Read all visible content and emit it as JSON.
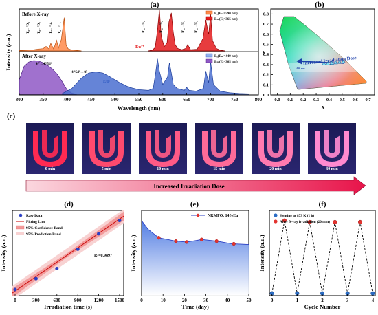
{
  "panels": {
    "a": {
      "label": "(a)",
      "before_title": "Before X-ray",
      "after_title": "After X-ray",
      "ion_eu3": "Eu³⁺",
      "ion_eu2": "Eu²⁺",
      "legend_before": [
        "Eₓ(Eₘ=590 nm)",
        "Eₘ(Eₓ=365 nm)"
      ],
      "legend_after": [
        "Eₓ(Eₘ=449 nm)",
        "Eₘ(Eₓ=365 nm)"
      ],
      "exc_peaks": [
        "⁷F₀→⁵D₄",
        "⁷F₀→⁵D₂",
        "⁷F₀→⁵G₂",
        "⁷F₀→⁵L₆"
      ],
      "em_peaks": [
        "⁵D₀→⁷F₁",
        "⁵D₀→⁷F₂",
        "⁵D₀→⁷F₃",
        "⁵D₀→⁷F₄"
      ],
      "eu2_exc_label": "4f⁷→4f⁶5d¹",
      "eu2_em_label": "4f⁶5d¹→4f⁷",
      "xlabel": "Wavelength (nm)",
      "ylabel": "Intensity (a.u.)",
      "xticks": [
        "300",
        "350",
        "400",
        "450",
        "500",
        "550",
        "600",
        "650",
        "700",
        "750",
        "800"
      ]
    },
    "b": {
      "label": "(b)",
      "annotation": "Increased Irradiation Dose",
      "start_label": "400 nm",
      "xlabel": "x",
      "ylabel": "y",
      "xticks": [
        "0.0",
        "0.1",
        "0.2",
        "0.3",
        "0.4",
        "0.5",
        "0.6",
        "0.7"
      ],
      "yticks": [
        "0.0",
        "0.1",
        "0.2",
        "0.3",
        "0.4",
        "0.5",
        "0.6",
        "0.7",
        "0.8"
      ]
    },
    "c": {
      "label": "(c)",
      "times": [
        "0 min",
        "5 min",
        "10 min",
        "15 min",
        "20 min",
        "30 min"
      ],
      "arrow_text": "Increased Irradiation Dose"
    },
    "d": {
      "label": "(d)",
      "legend": [
        "Raw Data",
        "Fitting Line",
        "95% Confidence Band",
        "95% Prediction Band"
      ],
      "r2": "R²=0.9897",
      "xlabel": "Irradiation time (s)",
      "ylabel": "Intensity (a.u.)",
      "xticks": [
        "0",
        "300",
        "600",
        "900",
        "1200",
        "1500"
      ]
    },
    "e": {
      "label": "(e)",
      "legend": "NKMPO: 14%Eu",
      "xlabel": "Time (day)",
      "ylabel": "Intensity (a.u.)",
      "xticks": [
        "0",
        "10",
        "20",
        "30",
        "40",
        "50"
      ]
    },
    "f": {
      "label": "(f)",
      "legend": [
        "Heating at 873 K (1 h)",
        "After X-ray irradiation (20 min)"
      ],
      "xlabel": "Cycle Number",
      "ylabel": "Intensity (a.u.)",
      "xticks": [
        "0",
        "1",
        "2",
        "3",
        "4"
      ]
    }
  },
  "colors": {
    "exc_before": "#ff8a4a",
    "em_before": "#e31a1c",
    "exc_after": "#8f58c6",
    "em_after": "#4a6fd0",
    "red_point": "#e3342f",
    "blue_point": "#2b6cc4",
    "fit_line": "#cc1010"
  },
  "chart_data": [
    {
      "panel": "a",
      "type": "line",
      "xlim": [
        300,
        800
      ],
      "series": [
        {
          "name": "Eₓ(Eₘ=590 nm)",
          "x": [
            300,
            315,
            330,
            340,
            350,
            356,
            362,
            366,
            372,
            378,
            382,
            388,
            394,
            398,
            402,
            408,
            416,
            430
          ],
          "y": [
            0.01,
            0.02,
            0.03,
            0.05,
            0.06,
            0.12,
            0.05,
            0.2,
            0.05,
            0.28,
            0.08,
            0.3,
            0.88,
            0.15,
            0.06,
            0.03,
            0.02,
            0.0
          ]
        },
        {
          "name": "Eₘ(Eₓ=365 nm)",
          "x": [
            570,
            578,
            584,
            589,
            593,
            597,
            603,
            609,
            613,
            618,
            622,
            626,
            631,
            640,
            648,
            652,
            658,
            672,
            684,
            690,
            696,
            700,
            704,
            712,
            720,
            730
          ],
          "y": [
            0.0,
            0.02,
            0.08,
            0.5,
            1.0,
            0.35,
            0.1,
            0.2,
            0.7,
            0.92,
            0.45,
            0.15,
            0.06,
            0.03,
            0.06,
            0.15,
            0.03,
            0.04,
            0.3,
            0.75,
            0.4,
            0.9,
            0.25,
            0.06,
            0.02,
            0.0
          ]
        },
        {
          "name": "Eₓ(Eₘ=449 nm)",
          "x": [
            300,
            310,
            320,
            330,
            340,
            350,
            360,
            370,
            380,
            390,
            400,
            410,
            420
          ],
          "y": [
            0.4,
            0.78,
            0.9,
            0.94,
            0.93,
            0.88,
            0.8,
            0.7,
            0.55,
            0.35,
            0.12,
            0.03,
            0.0
          ]
        },
        {
          "name": "Eₘ(Eₓ=365 nm)",
          "x": [
            390,
            410,
            430,
            445,
            460,
            475,
            490,
            510,
            530,
            550,
            570,
            580,
            585,
            589,
            593,
            600,
            610,
            614,
            618,
            622,
            630,
            645,
            650,
            655,
            670,
            685,
            690,
            696,
            700,
            706,
            720,
            740,
            760,
            780
          ],
          "y": [
            0.02,
            0.15,
            0.42,
            0.55,
            0.58,
            0.55,
            0.45,
            0.3,
            0.18,
            0.12,
            0.1,
            0.15,
            0.55,
            0.92,
            0.6,
            0.25,
            0.45,
            0.82,
            0.55,
            0.25,
            0.15,
            0.1,
            0.18,
            0.1,
            0.08,
            0.15,
            0.6,
            0.3,
            0.85,
            0.25,
            0.08,
            0.04,
            0.02,
            0.01
          ]
        }
      ]
    },
    {
      "panel": "b",
      "type": "scatter",
      "x": [
        0.36,
        0.39,
        0.42,
        0.45,
        0.48,
        0.51
      ],
      "y": [
        0.31,
        0.31,
        0.315,
        0.32,
        0.325,
        0.33
      ],
      "xlim": [
        -0.05,
        0.75
      ],
      "ylim": [
        0.0,
        0.85
      ]
    },
    {
      "panel": "d",
      "type": "scatter",
      "x": [
        0,
        300,
        600,
        900,
        1200,
        1500
      ],
      "y": [
        0.08,
        0.22,
        0.35,
        0.6,
        0.8,
        0.97
      ],
      "fit": [
        0.06,
        0.99
      ],
      "xlim": [
        0,
        1500
      ],
      "ylim": [
        0,
        1.1
      ]
    },
    {
      "panel": "e",
      "type": "area",
      "x": [
        0,
        3,
        8,
        16,
        21,
        26,
        28,
        35,
        42,
        50
      ],
      "y": [
        0.88,
        0.78,
        0.68,
        0.64,
        0.63,
        0.65,
        0.66,
        0.64,
        0.61,
        0.6
      ],
      "markers_x": [
        8,
        16,
        21,
        28,
        35,
        43
      ],
      "xlim": [
        0,
        50
      ],
      "ylim": [
        0,
        1.0
      ]
    },
    {
      "panel": "f",
      "type": "line",
      "x": [
        0,
        0.5,
        1,
        1.5,
        2,
        2.5,
        3,
        3.5,
        4
      ],
      "y": [
        0.03,
        0.97,
        0.03,
        0.95,
        0.03,
        0.95,
        0.03,
        0.95,
        0.03
      ],
      "series": [
        {
          "name": "Heating at 873 K (1 h)",
          "x": [
            0,
            1,
            2,
            3,
            4
          ],
          "y": [
            0.03,
            0.03,
            0.03,
            0.03,
            0.03
          ]
        },
        {
          "name": "After X-ray irradiation (20 min)",
          "x": [
            0.5,
            1.5,
            2.5,
            3.5
          ],
          "y": [
            0.97,
            0.95,
            0.95,
            0.95
          ]
        }
      ],
      "xlim": [
        -0.1,
        4.1
      ],
      "ylim": [
        0,
        1.1
      ]
    }
  ]
}
